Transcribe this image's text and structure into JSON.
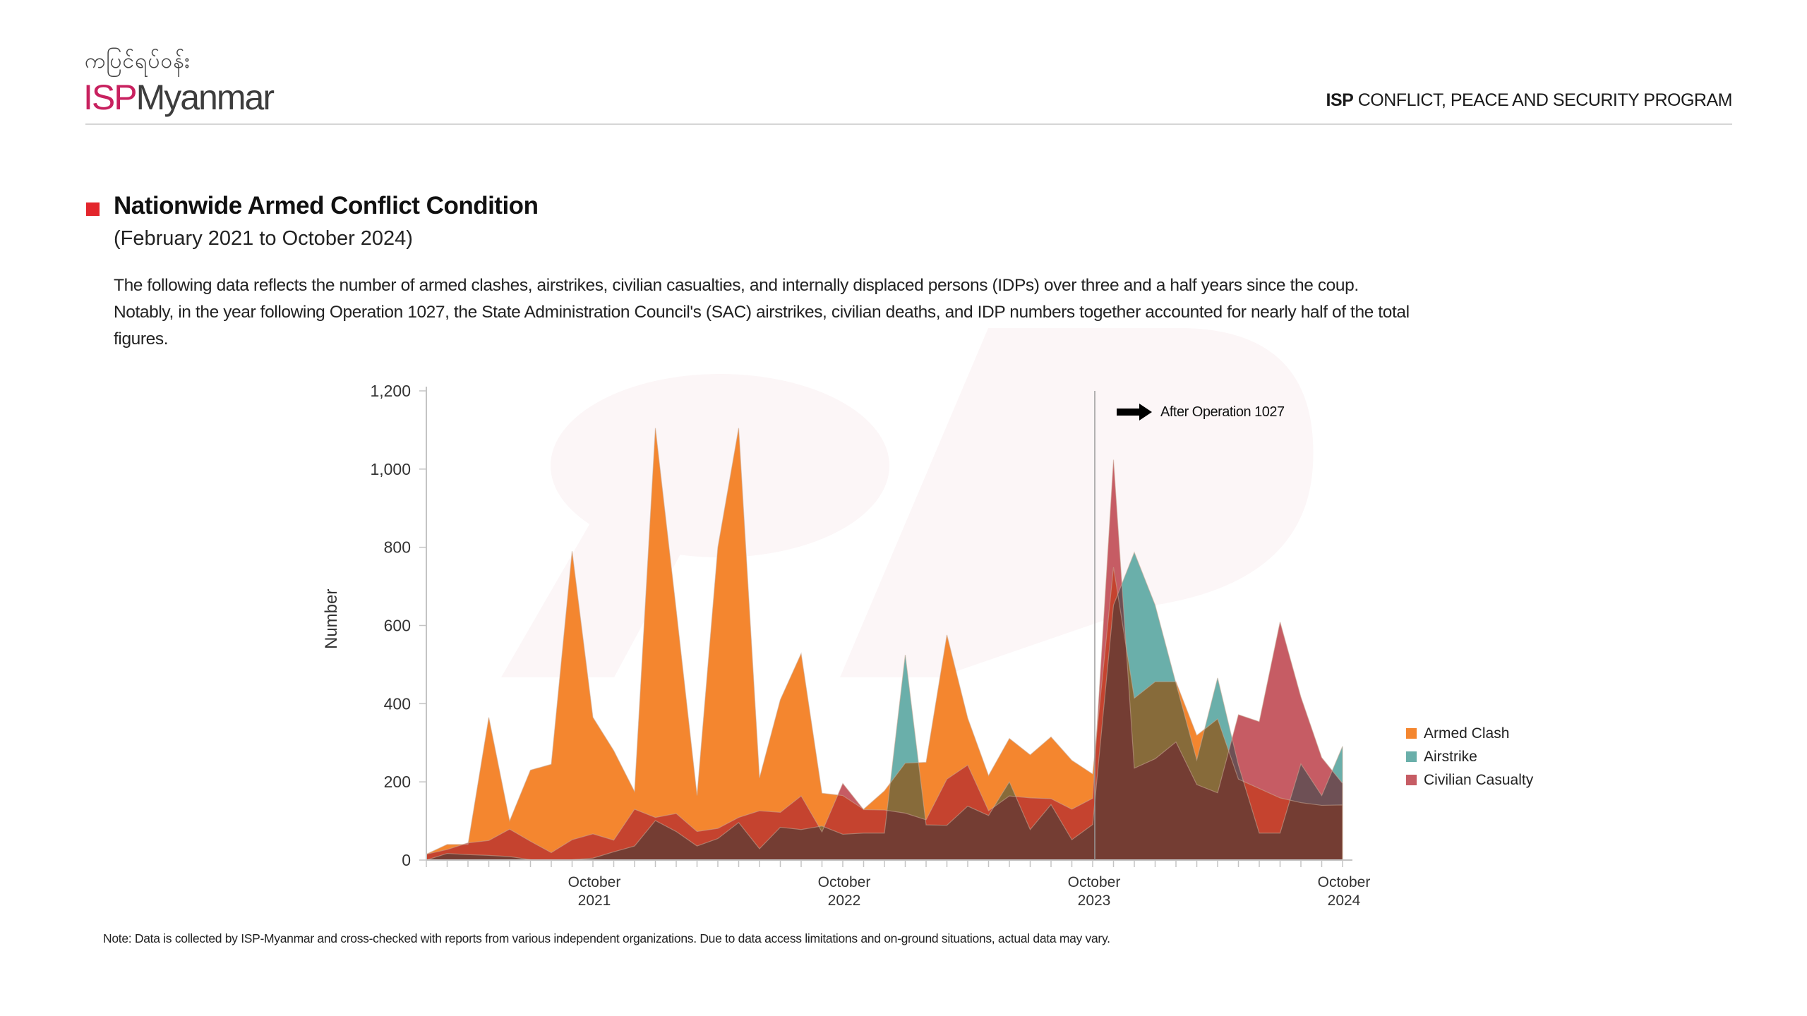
{
  "header": {
    "burmese_name": "ကပြင်ရပ်ဝန်း",
    "logo_isp": "ISP",
    "logo_myanmar": "Myanmar",
    "program_bold": "ISP",
    "program_rest": " CONFLICT, PEACE AND SECURITY PROGRAM",
    "brand_color": "#c8215f"
  },
  "section": {
    "title": "Nationwide Armed Conflict Condition",
    "subtitle": "(February 2021 to October 2024)",
    "description": "The following data reflects the number of armed clashes, airstrikes, civilian casualties, and internally displaced persons (IDPs) over three and a half years since the coup. Notably, in the year following Operation 1027, the State Administration Council's (SAC) airstrikes, civilian deaths, and IDP numbers together accounted for nearly half of the total figures.",
    "marker_color": "#e3262c"
  },
  "note": "Note: Data is collected by ISP-Myanmar and cross-checked with reports from various independent organizations. Due to data access limitations and on-ground situations, actual data may vary.",
  "chart_data": {
    "type": "area",
    "title": "Nationwide Armed Conflict Condition",
    "xlabel": "",
    "ylabel": "Number",
    "ylim": [
      0,
      1200
    ],
    "yticks": [
      0,
      200,
      400,
      600,
      800,
      1000,
      1200
    ],
    "ytick_labels": [
      "0",
      "200",
      "400",
      "600",
      "800",
      "1,000",
      "1,200"
    ],
    "x_start": "February 2021",
    "x_end": "October 2024",
    "x": [
      "2021-02",
      "2021-03",
      "2021-04",
      "2021-05",
      "2021-06",
      "2021-07",
      "2021-08",
      "2021-09",
      "2021-10",
      "2021-11",
      "2021-12",
      "2022-01",
      "2022-02",
      "2022-03",
      "2022-04",
      "2022-05",
      "2022-06",
      "2022-07",
      "2022-08",
      "2022-09",
      "2022-10",
      "2022-11",
      "2022-12",
      "2023-01",
      "2023-02",
      "2023-03",
      "2023-04",
      "2023-05",
      "2023-06",
      "2023-07",
      "2023-08",
      "2023-09",
      "2023-10",
      "2023-11",
      "2023-12",
      "2024-01",
      "2024-02",
      "2024-03",
      "2024-04",
      "2024-05",
      "2024-06",
      "2024-07",
      "2024-08",
      "2024-09",
      "2024-10"
    ],
    "xtick_labels": [
      {
        "index": 8,
        "line1": "October",
        "line2": "2021"
      },
      {
        "index": 20,
        "line1": "October",
        "line2": "2022"
      },
      {
        "index": 32,
        "line1": "October",
        "line2": "2023"
      },
      {
        "index": 44,
        "line1": "October",
        "line2": "2024"
      }
    ],
    "series": [
      {
        "name": "Armed Clash",
        "color": "#f4862f",
        "values": [
          15,
          40,
          40,
          365,
          100,
          230,
          245,
          790,
          365,
          280,
          175,
          1105,
          640,
          165,
          800,
          1105,
          210,
          410,
          528,
          171,
          165,
          130,
          177,
          248,
          250,
          576,
          363,
          216,
          311,
          269,
          315,
          255,
          220,
          749,
          414,
          456,
          456,
          319,
          361,
          207,
          183,
          159,
          147,
          140,
          141
        ]
      },
      {
        "name": "Airstrike",
        "color": "#6aafaa",
        "values": [
          0,
          17,
          14,
          12,
          9,
          1,
          0,
          1,
          5,
          21,
          36,
          101,
          73,
          36,
          55,
          96,
          29,
          84,
          78,
          87,
          66,
          69,
          69,
          525,
          90,
          89,
          138,
          114,
          200,
          78,
          142,
          52,
          91,
          652,
          787,
          652,
          452,
          256,
          466,
          243,
          69,
          69,
          246,
          165,
          291
        ]
      },
      {
        "name": "Civilian Casualty",
        "color": "#c65c64",
        "values": [
          15,
          27,
          44,
          50,
          79,
          48,
          19,
          52,
          67,
          51,
          130,
          109,
          119,
          73,
          81,
          109,
          126,
          122,
          164,
          72,
          196,
          129,
          128,
          120,
          103,
          207,
          243,
          126,
          164,
          159,
          157,
          130,
          158,
          1024,
          235,
          259,
          302,
          193,
          172,
          372,
          354,
          609,
          417,
          262,
          196
        ]
      }
    ],
    "overlap_colors": {
      "clash_airstrike": "#876b3a",
      "clash_casualty": "#c5432f",
      "airstrike_casualty": "#6e5055",
      "all_three": "#743d33"
    },
    "annotation": {
      "text": "After Operation 1027",
      "at_index": 32,
      "icon": "right-arrow-icon"
    },
    "legend": {
      "position": "right",
      "entries": [
        "Armed Clash",
        "Airstrike",
        "Civilian Casualty"
      ]
    },
    "grid": false
  }
}
